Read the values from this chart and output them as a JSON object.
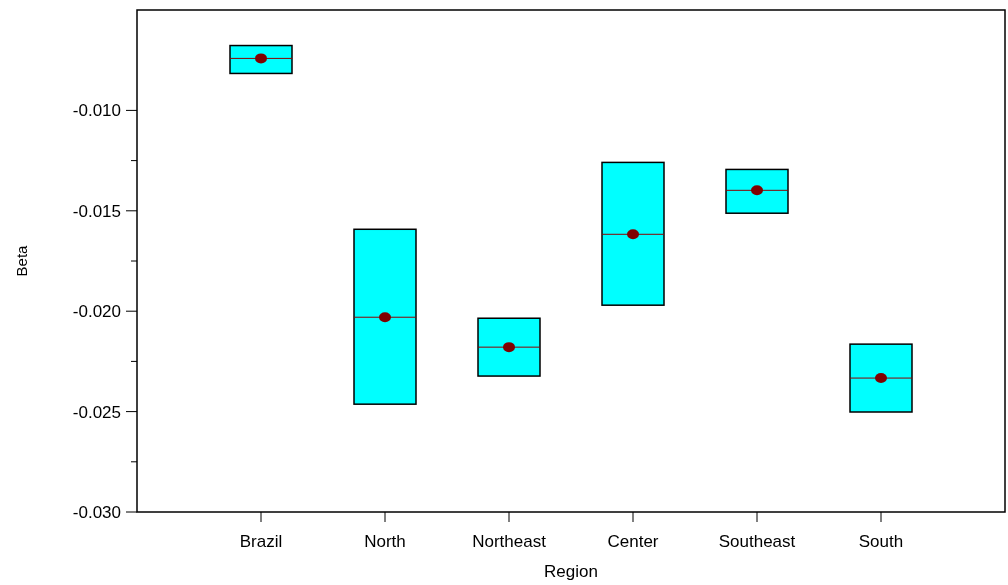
{
  "chart_data": {
    "type": "box",
    "xlabel": "Region",
    "ylabel": "Beta",
    "categories": [
      "Brazil",
      "North",
      "Northeast",
      "Center",
      "Southeast",
      "South"
    ],
    "color": "#00ffff",
    "boxes": [
      {
        "low": -0.00816,
        "q1": -0.00816,
        "median": -0.00741,
        "q3": -0.00677,
        "high": -0.00677,
        "mean": -0.00741
      },
      {
        "low": -0.02463,
        "q1": -0.02463,
        "median": -0.0203,
        "q3": -0.01592,
        "high": -0.01592,
        "mean": -0.0203
      },
      {
        "low": -0.02323,
        "q1": -0.02323,
        "median": -0.02179,
        "q3": -0.02035,
        "high": -0.02035,
        "mean": -0.02179
      },
      {
        "low": -0.0197,
        "q1": -0.0197,
        "median": -0.01617,
        "q3": -0.01259,
        "high": -0.01259,
        "mean": -0.01617
      },
      {
        "low": -0.01512,
        "q1": -0.01512,
        "median": -0.01398,
        "q3": -0.01294,
        "high": -0.01294,
        "mean": -0.01398
      },
      {
        "low": -0.02502,
        "q1": -0.02502,
        "median": -0.02333,
        "q3": -0.02164,
        "high": -0.02164,
        "mean": -0.02333
      }
    ],
    "ylim": [
      -0.03,
      -0.005
    ],
    "yticks": [
      {
        "value": -0.03,
        "label": "-0.030"
      },
      {
        "value": -0.0275,
        "label": null
      },
      {
        "value": -0.025,
        "label": "-0.025"
      },
      {
        "value": -0.0225,
        "label": null
      },
      {
        "value": -0.02,
        "label": "-0.020"
      },
      {
        "value": -0.0175,
        "label": null
      },
      {
        "value": -0.015,
        "label": "-0.015"
      },
      {
        "value": -0.0125,
        "label": null
      },
      {
        "value": -0.01,
        "label": "-0.010"
      }
    ],
    "grid": false
  }
}
